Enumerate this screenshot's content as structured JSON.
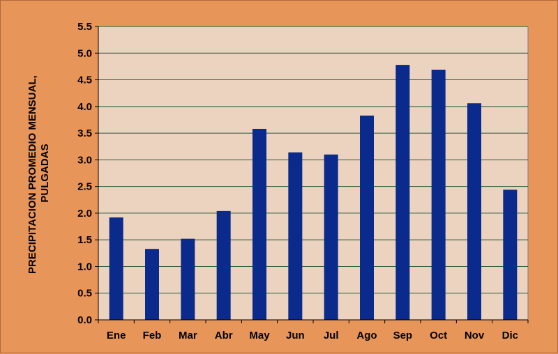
{
  "colors": {
    "page_background": "#e8955a",
    "plot_background": "#ecd3c0",
    "bar": "#0a2a8c",
    "gridline": "#2a5a3a"
  },
  "chart_data": {
    "type": "bar",
    "categories": [
      "Ene",
      "Feb",
      "Mar",
      "Abr",
      "May",
      "Jun",
      "Jul",
      "Ago",
      "Sep",
      "Oct",
      "Nov",
      "Dic"
    ],
    "values": [
      1.92,
      1.33,
      1.52,
      2.04,
      3.58,
      3.14,
      3.1,
      3.83,
      4.78,
      4.69,
      4.06,
      2.44
    ],
    "title": "",
    "xlabel": "",
    "ylabel_lines": [
      "PRECIPITACION PROMEDIO MENSUAL,",
      "PULGADAS"
    ],
    "ylim": [
      0,
      5.5
    ],
    "ytick_labels": [
      "0.0",
      "0.5",
      "1.0",
      "1.5",
      "2.0",
      "2.5",
      "3.0",
      "3.5",
      "4.0",
      "4.5",
      "5.0",
      "5.5"
    ],
    "grid": true,
    "legend": "none"
  }
}
